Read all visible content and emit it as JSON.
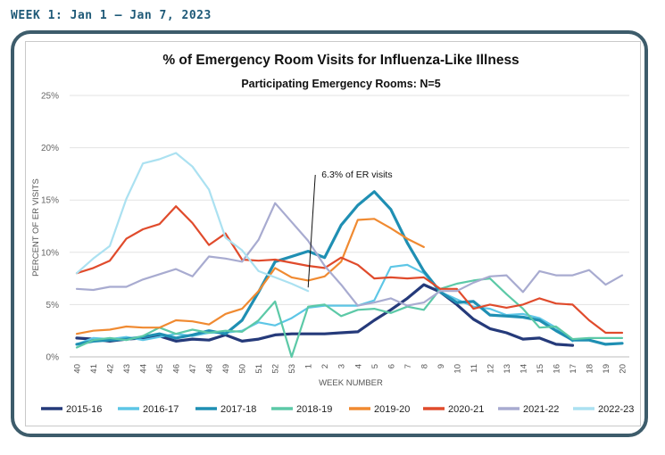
{
  "header": {
    "week_label": "WEEK 1: Jan 1 – Jan 7, 2023"
  },
  "chart_data": {
    "type": "line",
    "title": "% of Emergency Room Visits for Influenza-Like Illness",
    "subtitle": "Participating Emergency Rooms: N=5",
    "xlabel": "WEEK NUMBER",
    "ylabel": "PERCENT OF ER VISITS",
    "ylim": [
      0,
      25
    ],
    "yticks": [
      "0%",
      "5%",
      "10%",
      "15%",
      "20%",
      "25%"
    ],
    "grid": true,
    "legend_position": "bottom",
    "categories": [
      "40",
      "41",
      "42",
      "43",
      "44",
      "45",
      "46",
      "47",
      "48",
      "49",
      "50",
      "51",
      "52",
      "53",
      "1",
      "2",
      "3",
      "4",
      "5",
      "6",
      "7",
      "8",
      "9",
      "10",
      "11",
      "12",
      "13",
      "14",
      "15",
      "16",
      "17",
      "18",
      "19",
      "20"
    ],
    "annotation": {
      "text": "6.3% of ER visits",
      "x": "1",
      "y": 6.3
    },
    "series": [
      {
        "name": "2015-16",
        "color": "#253a7a",
        "width": 3.2,
        "values": [
          1.8,
          1.7,
          1.5,
          1.7,
          1.8,
          2.0,
          1.5,
          1.7,
          1.6,
          2.1,
          1.5,
          1.7,
          2.1,
          2.2,
          2.2,
          2.2,
          2.3,
          2.4,
          3.5,
          4.5,
          5.6,
          6.9,
          6.2,
          5.0,
          3.6,
          2.7,
          2.3,
          1.7,
          1.8,
          1.2,
          1.1,
          null,
          null,
          null
        ]
      },
      {
        "name": "2016-17",
        "color": "#5dc6e6",
        "width": 2.2,
        "values": [
          1.2,
          1.8,
          1.7,
          1.9,
          1.6,
          1.9,
          2.2,
          2.0,
          2.3,
          2.3,
          2.5,
          3.3,
          3.0,
          3.7,
          4.7,
          4.9,
          4.9,
          4.9,
          5.4,
          8.6,
          8.8,
          8.0,
          6.2,
          5.5,
          4.8,
          4.6,
          4.0,
          4.1,
          3.7,
          2.8,
          1.5,
          null,
          null,
          null
        ]
      },
      {
        "name": "2017-18",
        "color": "#1f8fb3",
        "width": 3.2,
        "values": [
          1.2,
          1.5,
          1.6,
          1.7,
          1.9,
          2.2,
          1.8,
          2.1,
          2.5,
          2.2,
          3.5,
          6.2,
          9.1,
          9.6,
          10.1,
          9.5,
          12.6,
          14.5,
          15.8,
          14.1,
          10.9,
          8.2,
          6.2,
          5.2,
          5.3,
          4.0,
          3.9,
          3.8,
          3.5,
          2.5,
          1.6,
          1.6,
          1.2,
          1.3
        ]
      },
      {
        "name": "2018-19",
        "color": "#5cc9a7",
        "width": 2.2,
        "values": [
          0.9,
          1.6,
          1.8,
          1.6,
          2.0,
          2.8,
          2.2,
          2.6,
          2.3,
          2.5,
          2.4,
          3.5,
          5.3,
          0.0,
          4.8,
          5.0,
          3.9,
          4.5,
          4.6,
          4.2,
          4.8,
          4.5,
          6.5,
          7.0,
          7.3,
          7.5,
          6.0,
          4.6,
          2.8,
          2.9,
          1.7,
          1.8,
          1.8,
          1.8
        ]
      },
      {
        "name": "2019-20",
        "color": "#f08a31",
        "width": 2.2,
        "values": [
          2.2,
          2.5,
          2.6,
          2.9,
          2.8,
          2.8,
          3.5,
          3.4,
          3.1,
          4.1,
          4.6,
          6.3,
          8.5,
          7.6,
          7.3,
          7.7,
          9.1,
          13.1,
          13.2,
          12.3,
          11.3,
          10.5,
          null,
          null,
          null,
          null,
          null,
          null,
          null,
          null,
          null,
          null,
          null,
          null
        ]
      },
      {
        "name": "2020-21",
        "color": "#e04b2c",
        "width": 2.2,
        "values": [
          8.0,
          8.5,
          9.2,
          11.3,
          12.2,
          12.7,
          14.4,
          12.8,
          10.7,
          11.8,
          9.3,
          9.2,
          9.3,
          9.0,
          8.7,
          8.5,
          9.5,
          8.8,
          7.5,
          7.6,
          7.5,
          7.6,
          6.5,
          6.5,
          4.6,
          5.0,
          4.7,
          5.0,
          5.6,
          5.1,
          5.0,
          3.5,
          2.3,
          2.3
        ]
      },
      {
        "name": "2021-22",
        "color": "#a8abd0",
        "width": 2.2,
        "values": [
          6.5,
          6.4,
          6.7,
          6.7,
          7.4,
          7.9,
          8.4,
          7.7,
          9.6,
          9.4,
          9.1,
          11.2,
          14.7,
          12.9,
          11.1,
          8.7,
          6.9,
          4.9,
          5.2,
          5.6,
          4.9,
          5.2,
          6.3,
          6.3,
          7.1,
          7.7,
          7.8,
          6.2,
          8.2,
          7.8,
          7.8,
          8.3,
          6.9,
          7.8
        ]
      },
      {
        "name": "2022-23",
        "color": "#abe1f1",
        "width": 2.2,
        "values": [
          8.0,
          9.4,
          10.6,
          15.1,
          18.5,
          18.9,
          19.5,
          18.2,
          16.0,
          11.4,
          10.2,
          8.2,
          7.6,
          7.0,
          6.3,
          null,
          null,
          null,
          null,
          null,
          null,
          null,
          null,
          null,
          null,
          null,
          null,
          null,
          null,
          null,
          null,
          null,
          null,
          null
        ]
      }
    ]
  }
}
